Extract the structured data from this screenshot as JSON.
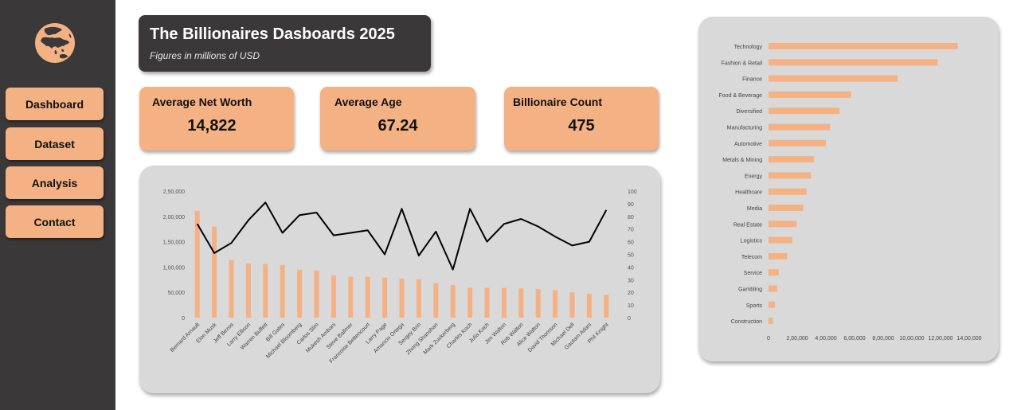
{
  "sidebar": {
    "logo_icon": "globe-asia-icon",
    "nav": [
      {
        "label": "Dashboard"
      },
      {
        "label": "Dataset"
      },
      {
        "label": "Analysis"
      },
      {
        "label": "Contact"
      }
    ]
  },
  "header": {
    "title": "The Billionaires Dasboards 2025",
    "subtitle": "Figures in millions of USD"
  },
  "kpis": {
    "avg_net_worth": {
      "label": "Average Net Worth",
      "value": "14,822"
    },
    "avg_age": {
      "label": "Average Age",
      "value": "67.24"
    },
    "count": {
      "label": "Billionaire Count",
      "value": "475"
    }
  },
  "colors": {
    "sidebar": "#3a3838",
    "accent": "#f4b183",
    "panel": "#d9d9d9",
    "line": "#000000"
  },
  "chart_data": [
    {
      "type": "bar",
      "combo_line": true,
      "title": "",
      "categories": [
        "Bernard Arnault",
        "Elon Musk",
        "Jeff Bezos",
        "Larry Ellison",
        "Warren Buffett",
        "Bill Gates",
        "Michael Bloomberg",
        "Carlos Slim",
        "Mukesh Ambani",
        "Steve Ballmer",
        "Francoise Bettencourt",
        "Larry Page",
        "Amancio Ortega",
        "Sergey Brin",
        "Zhong Shanshan",
        "Mark Zuckerberg",
        "Charles Koch",
        "Julia Koch",
        "Jim Walton",
        "Rob Walton",
        "Alice Walton",
        "David Thomson",
        "Michael Dell",
        "Gautam Adani",
        "Phil Knight"
      ],
      "series": [
        {
          "values": [
            211000,
            180000,
            114000,
            107000,
            106000,
            104000,
            94500,
            93000,
            83400,
            80700,
            80500,
            79200,
            77300,
            76000,
            68000,
            64400,
            59000,
            59000,
            58800,
            57600,
            56700,
            54400,
            50100,
            47200,
            45100
          ],
          "axis": "left",
          "kind": "bar"
        },
        {
          "values": [
            74,
            51,
            59,
            77,
            91,
            67,
            81,
            83,
            65,
            67,
            69,
            50,
            86,
            49,
            68,
            38,
            86,
            60,
            74,
            78,
            72,
            64,
            57,
            60,
            85
          ],
          "axis": "right",
          "kind": "line"
        }
      ],
      "ylim": [
        0,
        250000
      ],
      "y_ticks": [
        "0",
        "50,000",
        "1,00,000",
        "1,50,000",
        "2,00,000",
        "2,50,000"
      ],
      "y2lim": [
        0,
        100
      ],
      "y2_ticks": [
        "0",
        "10",
        "20",
        "30",
        "40",
        "50",
        "60",
        "70",
        "80",
        "90",
        "100"
      ],
      "grid": false
    },
    {
      "type": "bar",
      "orientation": "horizontal",
      "title": "",
      "categories": [
        "Technology",
        "Fashion & Retail",
        "Finance",
        "Food & Beverage",
        "Diversified",
        "Manufacturing",
        "Automotive",
        "Metals & Mining",
        "Energy",
        "Healthcare",
        "Media",
        "Real Estate",
        "Logistics",
        "Telecom",
        "Service",
        "Gambling",
        "Sports",
        "Construction"
      ],
      "values": [
        1320000,
        1180000,
        900000,
        575000,
        495000,
        430000,
        400000,
        318000,
        295000,
        265000,
        242000,
        195000,
        165000,
        130000,
        70000,
        60000,
        45000,
        30000
      ],
      "xlim": [
        0,
        1400000
      ],
      "x_ticks": [
        "0",
        "2,00,000",
        "4,00,000",
        "6,00,000",
        "8,00,000",
        "10,00,000",
        "12,00,000",
        "14,00,000"
      ],
      "grid": false
    }
  ]
}
